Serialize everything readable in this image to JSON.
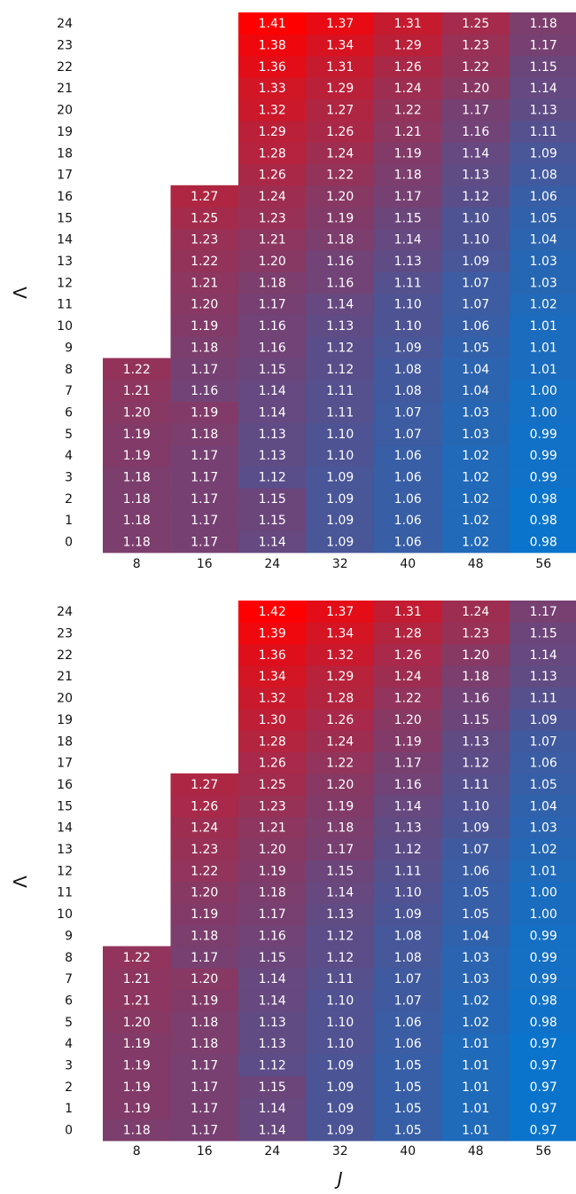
{
  "chart_data": [
    {
      "type": "heatmap",
      "xlabel": "",
      "ylabel": "Λ",
      "x_categories": [
        "8",
        "16",
        "24",
        "32",
        "40",
        "48",
        "56"
      ],
      "y_categories": [
        "0",
        "1",
        "2",
        "3",
        "4",
        "5",
        "6",
        "7",
        "8",
        "9",
        "10",
        "11",
        "12",
        "13",
        "14",
        "15",
        "16",
        "17",
        "18",
        "19",
        "20",
        "21",
        "22",
        "23",
        "24"
      ],
      "color_scale": {
        "low": "#0a74cc",
        "high": "#ff0000"
      },
      "columns": [
        {
          "x": "8",
          "values": [
            1.18,
            1.18,
            1.18,
            1.18,
            1.19,
            1.19,
            1.2,
            1.21,
            1.22
          ]
        },
        {
          "x": "16",
          "values": [
            1.17,
            1.17,
            1.17,
            1.17,
            1.17,
            1.18,
            1.19,
            1.16,
            1.17,
            1.18,
            1.19,
            1.2,
            1.21,
            1.22,
            1.23,
            1.25,
            1.27
          ]
        },
        {
          "x": "24",
          "values": [
            1.14,
            1.15,
            1.15,
            1.12,
            1.13,
            1.13,
            1.14,
            1.14,
            1.15,
            1.16,
            1.16,
            1.17,
            1.18,
            1.2,
            1.21,
            1.23,
            1.24,
            1.26,
            1.28,
            1.29,
            1.32,
            1.33,
            1.36,
            1.38,
            1.41
          ]
        },
        {
          "x": "32",
          "values": [
            1.09,
            1.09,
            1.09,
            1.09,
            1.1,
            1.1,
            1.11,
            1.11,
            1.12,
            1.12,
            1.13,
            1.14,
            1.16,
            1.16,
            1.18,
            1.19,
            1.2,
            1.22,
            1.24,
            1.26,
            1.27,
            1.29,
            1.31,
            1.34,
            1.37
          ]
        },
        {
          "x": "40",
          "values": [
            1.06,
            1.06,
            1.06,
            1.06,
            1.06,
            1.07,
            1.07,
            1.08,
            1.08,
            1.09,
            1.1,
            1.1,
            1.11,
            1.13,
            1.14,
            1.15,
            1.17,
            1.18,
            1.19,
            1.21,
            1.22,
            1.24,
            1.26,
            1.29,
            1.31
          ]
        },
        {
          "x": "48",
          "values": [
            1.02,
            1.02,
            1.02,
            1.02,
            1.02,
            1.03,
            1.03,
            1.04,
            1.04,
            1.05,
            1.06,
            1.07,
            1.07,
            1.09,
            1.1,
            1.1,
            1.12,
            1.13,
            1.14,
            1.16,
            1.17,
            1.2,
            1.22,
            1.23,
            1.25
          ]
        },
        {
          "x": "56",
          "values": [
            0.98,
            0.98,
            0.98,
            0.99,
            0.99,
            0.99,
            1.0,
            1.0,
            1.01,
            1.01,
            1.01,
            1.02,
            1.03,
            1.03,
            1.04,
            1.05,
            1.06,
            1.08,
            1.09,
            1.11,
            1.13,
            1.14,
            1.15,
            1.17,
            1.18
          ]
        }
      ]
    },
    {
      "type": "heatmap",
      "xlabel": "J",
      "ylabel": "Λ",
      "x_categories": [
        "8",
        "16",
        "24",
        "32",
        "40",
        "48",
        "56"
      ],
      "y_categories": [
        "0",
        "1",
        "2",
        "3",
        "4",
        "5",
        "6",
        "7",
        "8",
        "9",
        "10",
        "11",
        "12",
        "13",
        "14",
        "15",
        "16",
        "17",
        "18",
        "19",
        "20",
        "21",
        "22",
        "23",
        "24"
      ],
      "color_scale": {
        "low": "#0a74cc",
        "high": "#ff0000"
      },
      "columns": [
        {
          "x": "8",
          "values": [
            1.18,
            1.19,
            1.19,
            1.19,
            1.19,
            1.2,
            1.21,
            1.21,
            1.22
          ]
        },
        {
          "x": "16",
          "values": [
            1.17,
            1.17,
            1.17,
            1.17,
            1.18,
            1.18,
            1.19,
            1.2,
            1.17,
            1.18,
            1.19,
            1.2,
            1.22,
            1.23,
            1.24,
            1.26,
            1.27
          ]
        },
        {
          "x": "24",
          "values": [
            1.14,
            1.14,
            1.15,
            1.12,
            1.13,
            1.13,
            1.14,
            1.14,
            1.15,
            1.16,
            1.17,
            1.18,
            1.19,
            1.2,
            1.21,
            1.23,
            1.25,
            1.26,
            1.28,
            1.3,
            1.32,
            1.34,
            1.36,
            1.39,
            1.42
          ]
        },
        {
          "x": "32",
          "values": [
            1.09,
            1.09,
            1.09,
            1.09,
            1.1,
            1.1,
            1.1,
            1.11,
            1.12,
            1.12,
            1.13,
            1.14,
            1.15,
            1.17,
            1.18,
            1.19,
            1.2,
            1.22,
            1.24,
            1.26,
            1.28,
            1.29,
            1.32,
            1.34,
            1.37
          ]
        },
        {
          "x": "40",
          "values": [
            1.05,
            1.05,
            1.05,
            1.05,
            1.06,
            1.06,
            1.07,
            1.07,
            1.08,
            1.08,
            1.09,
            1.1,
            1.11,
            1.12,
            1.13,
            1.14,
            1.16,
            1.17,
            1.19,
            1.2,
            1.22,
            1.24,
            1.26,
            1.28,
            1.31
          ]
        },
        {
          "x": "48",
          "values": [
            1.01,
            1.01,
            1.01,
            1.01,
            1.01,
            1.02,
            1.02,
            1.03,
            1.03,
            1.04,
            1.05,
            1.05,
            1.06,
            1.07,
            1.09,
            1.1,
            1.11,
            1.12,
            1.13,
            1.15,
            1.16,
            1.18,
            1.2,
            1.23,
            1.24
          ]
        },
        {
          "x": "56",
          "values": [
            0.97,
            0.97,
            0.97,
            0.97,
            0.97,
            0.98,
            0.98,
            0.99,
            0.99,
            0.99,
            1.0,
            1.0,
            1.01,
            1.02,
            1.03,
            1.04,
            1.05,
            1.06,
            1.07,
            1.09,
            1.11,
            1.13,
            1.14,
            1.15,
            1.17
          ]
        }
      ]
    }
  ]
}
